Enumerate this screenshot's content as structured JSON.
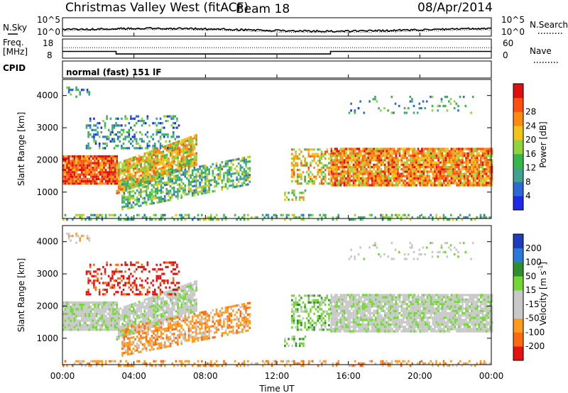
{
  "header": {
    "station": "Christmas Valley West (fitACF)",
    "beam": "Beam 18",
    "date": "08/Apr/2014"
  },
  "colors": {
    "power_scale": [
      "#1d2be8",
      "#2a6ad6",
      "#3fa38d",
      "#37b74a",
      "#8fd43c",
      "#f2c31b",
      "#ff8a12",
      "#ff5010",
      "#e10e0e"
    ],
    "velocity_scale": [
      "#1d3dbd",
      "#2a7bd6",
      "#2e8f2e",
      "#72d634",
      "#c8c8c8",
      "#c8c8c8",
      "#ff9a1e",
      "#ff6a10",
      "#e41212"
    ]
  },
  "chart_data": [
    {
      "type": "line",
      "panel": "noise",
      "left_label": "N.Sky",
      "right_label": "N.Search",
      "left_ticks": [
        "10^5",
        "10^0"
      ],
      "right_ticks": [
        "10^5",
        "10^0"
      ],
      "x_ticks": [
        "00:00",
        "04:00",
        "08:00",
        "12:00",
        "16:00",
        "20:00",
        "00:00"
      ]
    },
    {
      "type": "line",
      "panel": "frequency",
      "left_label_1": "Freq.",
      "left_label_2": "[MHz]",
      "right_label": "Nave",
      "left_ticks": [
        18,
        8
      ],
      "right_ticks": [
        60,
        0
      ],
      "series": [
        {
          "name": "Freq",
          "x": [
            "00:00",
            "03:00",
            "03:00",
            "15:00",
            "15:00",
            "24:00"
          ],
          "values": [
            11.5,
            11.5,
            10.2,
            10.2,
            11.5,
            11.5
          ]
        },
        {
          "name": "Nave",
          "x": [
            "00:00",
            "24:00"
          ],
          "values": [
            33,
            33
          ]
        }
      ]
    },
    {
      "type": "table",
      "panel": "cpid",
      "label": "CPID",
      "text": "normal (fast) 151 lF"
    },
    {
      "type": "heatmap",
      "panel": "power",
      "ylabel": "Slant Range [km]",
      "y_ticks": [
        1000,
        2000,
        3000,
        4000
      ],
      "x_ticks": [
        "00:00",
        "04:00",
        "08:00",
        "12:00",
        "16:00",
        "20:00",
        "00:00"
      ],
      "colorbar_label": "Power [dB]",
      "colorbar_ticks": [
        4,
        8,
        12,
        16,
        20,
        24,
        28
      ]
    },
    {
      "type": "heatmap",
      "panel": "velocity",
      "ylabel": "Slant Range [km]",
      "xlabel": "Time UT",
      "y_ticks": [
        1000,
        2000,
        3000,
        4000
      ],
      "x_ticks": [
        "00:00",
        "04:00",
        "08:00",
        "12:00",
        "16:00",
        "20:00",
        "00:00"
      ],
      "colorbar_label": "Velocity [m s",
      "colorbar_unit_sup": "-1",
      "colorbar_unit_end": "]",
      "colorbar_ticks": [
        200,
        100,
        50,
        15,
        -15,
        -50,
        -100,
        -200
      ]
    }
  ]
}
